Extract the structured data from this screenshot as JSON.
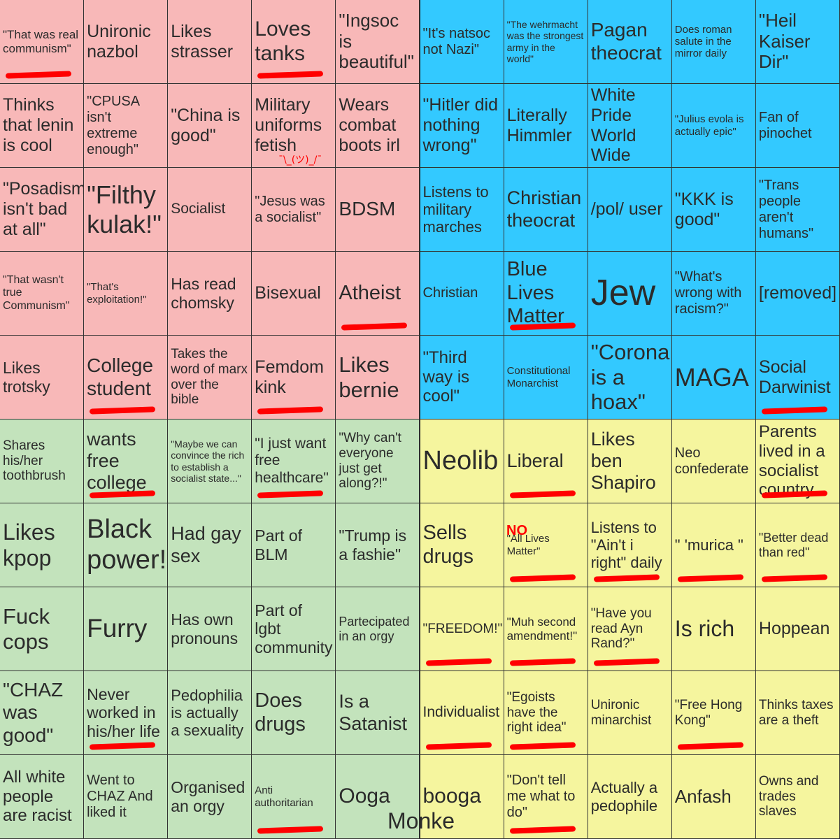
{
  "board": {
    "cells": [
      {
        "text": "\"That was real communism\"",
        "color": "#f8b8b8",
        "size": 17,
        "marked": true
      },
      {
        "text": "Unironic nazbol",
        "color": "#f8b8b8",
        "size": 25,
        "marked": false
      },
      {
        "text": "Likes strasser",
        "color": "#f8b8b8",
        "size": 25,
        "marked": false
      },
      {
        "text": "Loves tanks",
        "color": "#f8b8b8",
        "size": 30,
        "marked": true
      },
      {
        "text": "\"Ingsoc is beautiful\"",
        "color": "#f8b8b8",
        "size": 26,
        "marked": false
      },
      {
        "text": "\"It's natsoc not Nazi\"",
        "color": "#33c9ff",
        "size": 20,
        "marked": false
      },
      {
        "text": "\"The wehrmacht was the strongest army in the world\"",
        "color": "#33c9ff",
        "size": 14,
        "marked": false
      },
      {
        "text": "Pagan theocrat",
        "color": "#33c9ff",
        "size": 28,
        "marked": false
      },
      {
        "text": "Does roman salute in the mirror daily",
        "color": "#33c9ff",
        "size": 15,
        "marked": false
      },
      {
        "text": "\"Heil Kaiser Dir\"",
        "color": "#33c9ff",
        "size": 26,
        "marked": false
      },
      {
        "text": "Thinks that lenin is cool",
        "color": "#f8b8b8",
        "size": 25,
        "marked": false
      },
      {
        "text": "\"CPUSA isn't extreme enough\"",
        "color": "#f8b8b8",
        "size": 20,
        "marked": false
      },
      {
        "text": "\"China is good\"",
        "color": "#f8b8b8",
        "size": 25,
        "marked": false
      },
      {
        "text": "Military uniforms fetish",
        "color": "#f8b8b8",
        "size": 25,
        "marked": false
      },
      {
        "text": "Wears combat boots irl",
        "color": "#f8b8b8",
        "size": 25,
        "marked": false
      },
      {
        "text": "\"Hitler did nothing wrong\"",
        "color": "#33c9ff",
        "size": 25,
        "marked": false
      },
      {
        "text": "Literally Himmler",
        "color": "#33c9ff",
        "size": 25,
        "marked": false
      },
      {
        "text": "White Pride World Wide",
        "color": "#33c9ff",
        "size": 25,
        "marked": false
      },
      {
        "text": "\"Julius evola is actually epic\"",
        "color": "#33c9ff",
        "size": 15,
        "marked": false
      },
      {
        "text": "Fan of pinochet",
        "color": "#33c9ff",
        "size": 20,
        "marked": false
      },
      {
        "text": "\"Posadism isn't bad at all\"",
        "color": "#f8b8b8",
        "size": 25,
        "marked": false
      },
      {
        "text": "\"Filthy kulak!\"",
        "color": "#f8b8b8",
        "size": 36,
        "marked": false
      },
      {
        "text": "Socialist",
        "color": "#f8b8b8",
        "size": 21,
        "marked": false
      },
      {
        "text": "\"Jesus was a socialist\"",
        "color": "#f8b8b8",
        "size": 20,
        "marked": false
      },
      {
        "text": "BDSM",
        "color": "#f8b8b8",
        "size": 28,
        "marked": false
      },
      {
        "text": "Listens to military marches",
        "color": "#33c9ff",
        "size": 22,
        "marked": false
      },
      {
        "text": "Christian theocrat",
        "color": "#33c9ff",
        "size": 27,
        "marked": false
      },
      {
        "text": "/pol/ user",
        "color": "#33c9ff",
        "size": 25,
        "marked": false
      },
      {
        "text": "\"KKK is good\"",
        "color": "#33c9ff",
        "size": 25,
        "marked": false
      },
      {
        "text": "\"Trans people aren't humans\"",
        "color": "#33c9ff",
        "size": 20,
        "marked": false
      },
      {
        "text": "\"That wasn't true Communism\"",
        "color": "#f8b8b8",
        "size": 16,
        "marked": false
      },
      {
        "text": "\"That's exploitation!\"",
        "color": "#f8b8b8",
        "size": 15,
        "marked": false
      },
      {
        "text": "Has read chomsky",
        "color": "#f8b8b8",
        "size": 23,
        "marked": false
      },
      {
        "text": "Bisexual",
        "color": "#f8b8b8",
        "size": 25,
        "marked": false
      },
      {
        "text": "Atheist",
        "color": "#f8b8b8",
        "size": 29,
        "marked": true
      },
      {
        "text": "Christian",
        "color": "#33c9ff",
        "size": 20,
        "marked": false
      },
      {
        "text": "Blue Lives Matter",
        "color": "#33c9ff",
        "size": 29,
        "marked": true
      },
      {
        "text": "Jew",
        "color": "#33c9ff",
        "size": 52,
        "marked": false
      },
      {
        "text": "\"What's wrong with racism?\"",
        "color": "#33c9ff",
        "size": 20,
        "marked": false
      },
      {
        "text": "[removed]",
        "color": "#33c9ff",
        "size": 25,
        "marked": false
      },
      {
        "text": "Likes trotsky",
        "color": "#f8b8b8",
        "size": 23,
        "marked": false
      },
      {
        "text": "College student",
        "color": "#f8b8b8",
        "size": 28,
        "marked": true
      },
      {
        "text": "Takes the word of marx over the bible",
        "color": "#f8b8b8",
        "size": 19,
        "marked": false
      },
      {
        "text": "Femdom kink",
        "color": "#f8b8b8",
        "size": 25,
        "marked": true
      },
      {
        "text": "Likes bernie",
        "color": "#f8b8b8",
        "size": 31,
        "marked": false
      },
      {
        "text": "\"Third way is cool\"",
        "color": "#33c9ff",
        "size": 24,
        "marked": false
      },
      {
        "text": "Constitutional Monarchist",
        "color": "#33c9ff",
        "size": 15,
        "marked": false
      },
      {
        "text": "\"Corona is a hoax\"",
        "color": "#33c9ff",
        "size": 31,
        "marked": false
      },
      {
        "text": "MAGA",
        "color": "#33c9ff",
        "size": 36,
        "marked": false
      },
      {
        "text": "Social Darwinist",
        "color": "#33c9ff",
        "size": 25,
        "marked": true
      },
      {
        "text": "Shares his/her toothbrush",
        "color": "#c3e3bc",
        "size": 19,
        "marked": false
      },
      {
        "text": "wants free college",
        "color": "#c3e3bc",
        "size": 27,
        "marked": true
      },
      {
        "text": "\"Maybe we can convince the rich to establish a socialist state...\"",
        "color": "#c3e3bc",
        "size": 14,
        "marked": false
      },
      {
        "text": "\"I just want free healthcare\"",
        "color": "#c3e3bc",
        "size": 21,
        "marked": true
      },
      {
        "text": "\"Why can't everyone just get along?!\"",
        "color": "#c3e3bc",
        "size": 19,
        "marked": false
      },
      {
        "text": "Neolib",
        "color": "#f5f59e",
        "size": 38,
        "marked": false
      },
      {
        "text": "Liberal",
        "color": "#f5f59e",
        "size": 27,
        "marked": true
      },
      {
        "text": "Likes ben Shapiro",
        "color": "#f5f59e",
        "size": 27,
        "marked": false
      },
      {
        "text": "Neo confederate",
        "color": "#f5f59e",
        "size": 20,
        "marked": false
      },
      {
        "text": "Parents lived in a socialist country",
        "color": "#f5f59e",
        "size": 24,
        "marked": true
      },
      {
        "text": "Likes kpop",
        "color": "#c3e3bc",
        "size": 32,
        "marked": false
      },
      {
        "text": "Black power!",
        "color": "#c3e3bc",
        "size": 38,
        "marked": false
      },
      {
        "text": "Had gay sex",
        "color": "#c3e3bc",
        "size": 27,
        "marked": false
      },
      {
        "text": "Part of BLM",
        "color": "#c3e3bc",
        "size": 23,
        "marked": false
      },
      {
        "text": "\"Trump is a fashie\"",
        "color": "#c3e3bc",
        "size": 23,
        "marked": false
      },
      {
        "text": "Sells drugs",
        "color": "#f5f59e",
        "size": 29,
        "marked": false
      },
      {
        "text": "\"All Lives Matter\"",
        "color": "#f5f59e",
        "size": 15,
        "marked": true
      },
      {
        "text": "Listens to \"Ain't i right\" daily",
        "color": "#f5f59e",
        "size": 22,
        "marked": true
      },
      {
        "text": "\" 'murica \"",
        "color": "#f5f59e",
        "size": 22,
        "marked": true
      },
      {
        "text": "\"Better dead than red\"",
        "color": "#f5f59e",
        "size": 18,
        "marked": true
      },
      {
        "text": "Fuck cops",
        "color": "#c3e3bc",
        "size": 31,
        "marked": false
      },
      {
        "text": "Furry",
        "color": "#c3e3bc",
        "size": 37,
        "marked": false
      },
      {
        "text": "Has own pronouns",
        "color": "#c3e3bc",
        "size": 23,
        "marked": false
      },
      {
        "text": "Part of lgbt community",
        "color": "#c3e3bc",
        "size": 23,
        "marked": false
      },
      {
        "text": "Partecipated in an orgy",
        "color": "#c3e3bc",
        "size": 18,
        "marked": false
      },
      {
        "text": "\"FREEDOM!\"",
        "color": "#f5f59e",
        "size": 19,
        "marked": true
      },
      {
        "text": "\"Muh second amendment!\"",
        "color": "#f5f59e",
        "size": 17,
        "marked": true
      },
      {
        "text": "\"Have you read Ayn Rand?\"",
        "color": "#f5f59e",
        "size": 19,
        "marked": true
      },
      {
        "text": "Is rich",
        "color": "#f5f59e",
        "size": 32,
        "marked": false
      },
      {
        "text": "Hoppean",
        "color": "#f5f59e",
        "size": 25,
        "marked": false
      },
      {
        "text": "\"CHAZ was good\"",
        "color": "#c3e3bc",
        "size": 28,
        "marked": false
      },
      {
        "text": "Never worked in his/her life",
        "color": "#c3e3bc",
        "size": 23,
        "marked": true
      },
      {
        "text": "Pedophilia is actually a sexuality",
        "color": "#c3e3bc",
        "size": 22,
        "marked": false
      },
      {
        "text": "Does drugs",
        "color": "#c3e3bc",
        "size": 29,
        "marked": false
      },
      {
        "text": "Is a Satanist",
        "color": "#c3e3bc",
        "size": 27,
        "marked": false
      },
      {
        "text": "Individualist",
        "color": "#f5f59e",
        "size": 21,
        "marked": true
      },
      {
        "text": "\"Egoists have the right idea\"",
        "color": "#f5f59e",
        "size": 19,
        "marked": true
      },
      {
        "text": "Unironic minarchist",
        "color": "#f5f59e",
        "size": 19,
        "marked": false
      },
      {
        "text": "\"Free Hong Kong\"",
        "color": "#f5f59e",
        "size": 19,
        "marked": true
      },
      {
        "text": "Thinks taxes are a theft",
        "color": "#f5f59e",
        "size": 19,
        "marked": false
      },
      {
        "text": "All white people are racist",
        "color": "#c3e3bc",
        "size": 24,
        "marked": false
      },
      {
        "text": "Went to CHAZ And liked it",
        "color": "#c3e3bc",
        "size": 20,
        "marked": false
      },
      {
        "text": "Organised an orgy",
        "color": "#c3e3bc",
        "size": 23,
        "marked": false
      },
      {
        "text": "Anti authoritarian",
        "color": "#c3e3bc",
        "size": 15,
        "marked": true
      },
      {
        "text": "Ooga",
        "color": "#c3e3bc",
        "size": 30,
        "marked": false
      },
      {
        "text": "booga",
        "color": "#f5f59e",
        "size": 30,
        "marked": false
      },
      {
        "text": "\"Don't tell me what to do\"",
        "color": "#f5f59e",
        "size": 20,
        "marked": true
      },
      {
        "text": "Actually a pedophile",
        "color": "#f5f59e",
        "size": 22,
        "marked": false
      },
      {
        "text": "Anfash",
        "color": "#f5f59e",
        "size": 26,
        "marked": false
      },
      {
        "text": "Owns and trades slaves",
        "color": "#f5f59e",
        "size": 19,
        "marked": false
      }
    ],
    "annotations": {
      "no_label": "NO",
      "shrug": "¯\\_(ツ)_/¯",
      "monke": "Monke"
    },
    "marker_color": "#ff0000"
  }
}
